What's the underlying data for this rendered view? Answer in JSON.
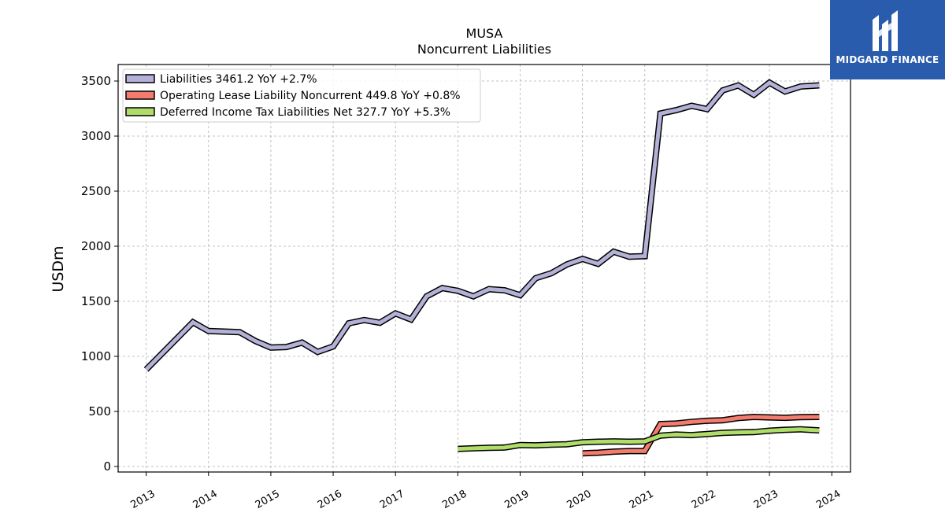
{
  "chart_data": {
    "type": "line",
    "title": "MUSA",
    "subtitle": "Noncurrent  Liabilities",
    "xlabel": "",
    "ylabel": "USDm",
    "xlim": [
      2012.55,
      2024.3
    ],
    "ylim": [
      -50,
      3650
    ],
    "x_ticks": [
      "2013",
      "2014",
      "2015",
      "2016",
      "2017",
      "2018",
      "2019",
      "2020",
      "2021",
      "2022",
      "2023",
      "2024"
    ],
    "y_ticks": [
      0,
      500,
      1000,
      1500,
      2000,
      2500,
      3000,
      3500
    ],
    "grid": true,
    "legend_position": "top-left",
    "series": [
      {
        "name": "Liabilities  3461.2 YoY +2.7%",
        "color": "#b4b1d8",
        "points": [
          [
            2013.0,
            880
          ],
          [
            2013.75,
            1310
          ],
          [
            2014.0,
            1230
          ],
          [
            2014.5,
            1220
          ],
          [
            2014.75,
            1140
          ],
          [
            2015.0,
            1080
          ],
          [
            2015.25,
            1085
          ],
          [
            2015.5,
            1125
          ],
          [
            2015.75,
            1040
          ],
          [
            2016.0,
            1090
          ],
          [
            2016.25,
            1300
          ],
          [
            2016.5,
            1330
          ],
          [
            2016.75,
            1305
          ],
          [
            2017.0,
            1390
          ],
          [
            2017.25,
            1335
          ],
          [
            2017.5,
            1545
          ],
          [
            2017.75,
            1620
          ],
          [
            2018.0,
            1595
          ],
          [
            2018.25,
            1545
          ],
          [
            2018.5,
            1610
          ],
          [
            2018.75,
            1600
          ],
          [
            2019.0,
            1555
          ],
          [
            2019.25,
            1710
          ],
          [
            2019.5,
            1755
          ],
          [
            2019.75,
            1835
          ],
          [
            2020.0,
            1885
          ],
          [
            2020.25,
            1840
          ],
          [
            2020.5,
            1950
          ],
          [
            2020.75,
            1905
          ],
          [
            2021.0,
            1910
          ],
          [
            2021.25,
            3205
          ],
          [
            2021.5,
            3235
          ],
          [
            2021.75,
            3275
          ],
          [
            2022.0,
            3245
          ],
          [
            2022.25,
            3415
          ],
          [
            2022.5,
            3460
          ],
          [
            2022.75,
            3375
          ],
          [
            2023.0,
            3485
          ],
          [
            2023.25,
            3405
          ],
          [
            2023.5,
            3450
          ],
          [
            2023.8,
            3461
          ]
        ]
      },
      {
        "name": "Operating Lease Liability Noncurrent  449.8 YoY +0.8%",
        "color": "#f47c6e",
        "points": [
          [
            2020.0,
            120
          ],
          [
            2020.25,
            125
          ],
          [
            2020.5,
            135
          ],
          [
            2020.75,
            140
          ],
          [
            2021.0,
            140
          ],
          [
            2021.25,
            385
          ],
          [
            2021.5,
            390
          ],
          [
            2021.75,
            405
          ],
          [
            2022.0,
            415
          ],
          [
            2022.25,
            420
          ],
          [
            2022.5,
            440
          ],
          [
            2022.75,
            450
          ],
          [
            2023.0,
            446
          ],
          [
            2023.25,
            442
          ],
          [
            2023.5,
            448
          ],
          [
            2023.8,
            450
          ]
        ]
      },
      {
        "name": "Deferred Income Tax Liabilities Net  327.7 YoY +5.3%",
        "color": "#b0dd6a",
        "points": [
          [
            2018.0,
            160
          ],
          [
            2018.25,
            165
          ],
          [
            2018.5,
            170
          ],
          [
            2018.75,
            172
          ],
          [
            2019.0,
            195
          ],
          [
            2019.25,
            192
          ],
          [
            2019.5,
            198
          ],
          [
            2019.75,
            202
          ],
          [
            2020.0,
            220
          ],
          [
            2020.25,
            225
          ],
          [
            2020.5,
            228
          ],
          [
            2020.75,
            225
          ],
          [
            2021.0,
            228
          ],
          [
            2021.25,
            280
          ],
          [
            2021.5,
            290
          ],
          [
            2021.75,
            285
          ],
          [
            2022.0,
            295
          ],
          [
            2022.25,
            305
          ],
          [
            2022.5,
            310
          ],
          [
            2022.75,
            312
          ],
          [
            2023.0,
            325
          ],
          [
            2023.25,
            333
          ],
          [
            2023.5,
            338
          ],
          [
            2023.8,
            328
          ]
        ]
      }
    ]
  },
  "logo": {
    "text": "MIDGARD FINANCE",
    "background": "#2a5cad",
    "icon": "midgard-m-logo-icon"
  }
}
